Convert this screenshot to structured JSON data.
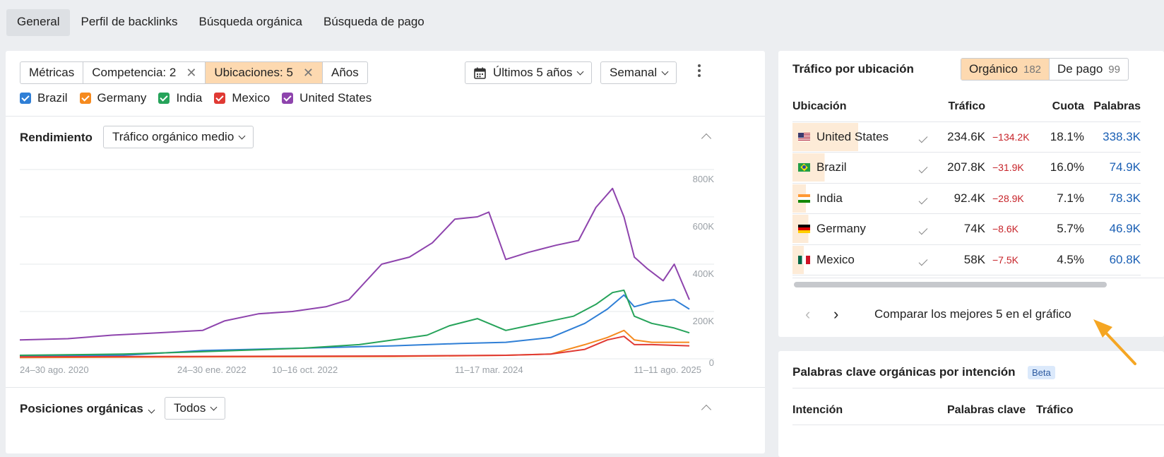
{
  "topnav": {
    "tabs": [
      {
        "label": "General",
        "active": true
      },
      {
        "label": "Perfil de backlinks",
        "active": false
      },
      {
        "label": "Búsqueda orgánica",
        "active": false
      },
      {
        "label": "Búsqueda de pago",
        "active": false
      }
    ]
  },
  "filters": {
    "metricas": "Métricas",
    "competencia": "Competencia: 2",
    "ubicaciones": "Ubicaciones: 5",
    "anos": "Años",
    "period": "Últimos 5 años",
    "granularity": "Semanal"
  },
  "legend": [
    {
      "label": "Brazil",
      "color": "#2f7fd6"
    },
    {
      "label": "Germany",
      "color": "#f58a1f"
    },
    {
      "label": "India",
      "color": "#26a35a"
    },
    {
      "label": "Mexico",
      "color": "#e03a34"
    },
    {
      "label": "United States",
      "color": "#8e44ad"
    }
  ],
  "performance": {
    "title": "Rendimiento",
    "metric_select": "Tráfico orgánico medio"
  },
  "chart_data": {
    "type": "line",
    "title": "",
    "ylabel": "",
    "ylim": [
      0,
      800000
    ],
    "y_ticks": [
      "800K",
      "600K",
      "400K",
      "200K",
      "0"
    ],
    "x_ticks": [
      "24–30 ago. 2020",
      "24–30 ene. 2022",
      "10–16 oct. 2022",
      "11–17 mar. 2024",
      "11–11 ago. 2025"
    ],
    "x_start": "2020-08-24",
    "x_end": "2025-08-11",
    "grid": true,
    "series": [
      {
        "name": "United States",
        "color": "#8e44ad",
        "x": [
          "2020-08-24",
          "2021-01-01",
          "2021-05-01",
          "2021-09-01",
          "2022-01-01",
          "2022-03-01",
          "2022-06-01",
          "2022-09-01",
          "2022-12-01",
          "2023-02-01",
          "2023-05-01",
          "2023-07-15",
          "2023-09-15",
          "2023-11-15",
          "2024-01-15",
          "2024-02-15",
          "2024-04-01",
          "2024-06-01",
          "2024-08-15",
          "2024-10-15",
          "2024-12-01",
          "2025-01-15",
          "2025-02-15",
          "2025-03-15",
          "2025-04-20",
          "2025-06-01",
          "2025-07-01",
          "2025-07-20",
          "2025-08-11"
        ],
        "values": [
          80000,
          85000,
          100000,
          110000,
          120000,
          160000,
          190000,
          200000,
          220000,
          250000,
          400000,
          430000,
          490000,
          590000,
          600000,
          620000,
          420000,
          450000,
          480000,
          500000,
          640000,
          720000,
          600000,
          430000,
          380000,
          330000,
          400000,
          330000,
          250000
        ]
      },
      {
        "name": "Brazil",
        "color": "#2f7fd6",
        "x": [
          "2020-08-24",
          "2021-06-01",
          "2022-01-01",
          "2022-10-01",
          "2023-06-01",
          "2023-12-01",
          "2024-04-01",
          "2024-08-01",
          "2024-11-01",
          "2025-01-01",
          "2025-02-15",
          "2025-03-15",
          "2025-05-01",
          "2025-07-01",
          "2025-08-11"
        ],
        "values": [
          10000,
          15000,
          35000,
          45000,
          55000,
          65000,
          70000,
          90000,
          150000,
          210000,
          270000,
          220000,
          240000,
          250000,
          210000
        ]
      },
      {
        "name": "India",
        "color": "#26a35a",
        "x": [
          "2020-08-24",
          "2021-06-01",
          "2022-01-01",
          "2022-10-01",
          "2023-03-01",
          "2023-06-01",
          "2023-09-01",
          "2023-11-01",
          "2024-01-15",
          "2024-04-01",
          "2024-07-01",
          "2024-10-01",
          "2024-12-01",
          "2025-01-15",
          "2025-02-15",
          "2025-03-15",
          "2025-05-01",
          "2025-07-01",
          "2025-08-11"
        ],
        "values": [
          15000,
          20000,
          30000,
          45000,
          60000,
          80000,
          100000,
          140000,
          170000,
          120000,
          150000,
          180000,
          230000,
          280000,
          290000,
          180000,
          150000,
          130000,
          110000
        ]
      },
      {
        "name": "Germany",
        "color": "#f58a1f",
        "x": [
          "2020-08-24",
          "2022-01-01",
          "2023-06-01",
          "2024-04-01",
          "2024-08-01",
          "2024-11-01",
          "2025-01-01",
          "2025-02-15",
          "2025-03-15",
          "2025-05-01",
          "2025-08-11"
        ],
        "values": [
          5000,
          8000,
          10000,
          15000,
          20000,
          60000,
          90000,
          120000,
          80000,
          70000,
          70000
        ]
      },
      {
        "name": "Mexico",
        "color": "#e03a34",
        "x": [
          "2020-08-24",
          "2022-01-01",
          "2023-06-01",
          "2024-04-01",
          "2024-08-01",
          "2024-11-01",
          "2025-01-01",
          "2025-02-15",
          "2025-03-15",
          "2025-05-01",
          "2025-08-11"
        ],
        "values": [
          8000,
          10000,
          12000,
          15000,
          20000,
          40000,
          80000,
          95000,
          60000,
          60000,
          55000
        ]
      }
    ]
  },
  "positions": {
    "title": "Posiciones orgánicas",
    "filter": "Todos"
  },
  "traffic_by_location": {
    "title": "Tráfico por ubicación",
    "organic_label": "Orgánico",
    "organic_count": "182",
    "paid_label": "De pago",
    "paid_count": "99",
    "headers": {
      "location": "Ubicación",
      "traffic": "Tráfico",
      "share": "Cuota",
      "keywords": "Palabras"
    },
    "rows": [
      {
        "flag": "us-flag-icon",
        "name": "United States",
        "traffic": "234.6K",
        "diff": "−134.2K",
        "share": "18.1%",
        "keywords": "338.3K",
        "bar": 0.38
      },
      {
        "flag": "br-flag-icon",
        "name": "Brazil",
        "traffic": "207.8K",
        "diff": "−31.9K",
        "share": "16.0%",
        "keywords": "74.9K",
        "bar": 0.33
      },
      {
        "flag": "in-flag-icon",
        "name": "India",
        "traffic": "92.4K",
        "diff": "−28.9K",
        "share": "7.1%",
        "keywords": "78.3K",
        "bar": 0.15
      },
      {
        "flag": "de-flag-icon",
        "name": "Germany",
        "traffic": "74K",
        "diff": "−8.6K",
        "share": "5.7%",
        "keywords": "46.9K",
        "bar": 0.12
      },
      {
        "flag": "mx-flag-icon",
        "name": "Mexico",
        "traffic": "58K",
        "diff": "−7.5K",
        "share": "4.5%",
        "keywords": "60.8K",
        "bar": 0.1
      }
    ],
    "compare_label": "Comparar los mejores 5 en el gráfico"
  },
  "intent": {
    "title": "Palabras clave orgánicas por intención",
    "beta": "Beta",
    "headers": {
      "intent": "Intención",
      "keywords": "Palabras clave",
      "traffic": "Tráfico"
    }
  }
}
